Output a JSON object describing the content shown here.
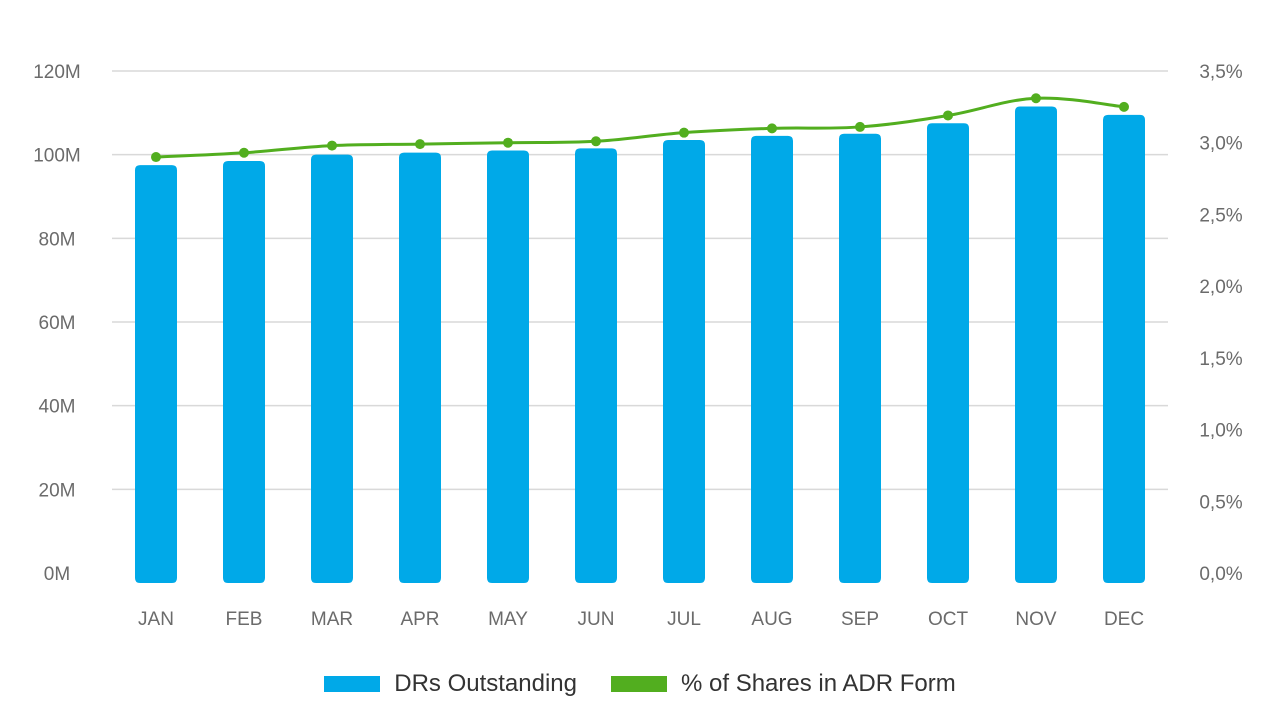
{
  "chart_data": {
    "type": "bar",
    "categories": [
      "JAN",
      "FEB",
      "MAR",
      "APR",
      "MAY",
      "JUN",
      "JUL",
      "AUG",
      "SEP",
      "OCT",
      "NOV",
      "DEC"
    ],
    "series": [
      {
        "name": "DRs Outstanding",
        "type": "bar",
        "axis": "left",
        "color": "#00A9E8",
        "values": [
          97.5,
          98.5,
          100.0,
          100.5,
          101.0,
          101.5,
          103.5,
          104.5,
          105.0,
          107.5,
          111.5,
          109.5
        ]
      },
      {
        "name": "% of Shares in ADR Form",
        "type": "line",
        "axis": "right",
        "color": "#52AE1F",
        "values": [
          2.9,
          2.93,
          2.98,
          2.99,
          3.0,
          3.01,
          3.07,
          3.1,
          3.11,
          3.19,
          3.31,
          3.25
        ]
      }
    ],
    "y_left": {
      "ylim": [
        0,
        120
      ],
      "ticks": [
        0,
        20,
        40,
        60,
        80,
        100,
        120
      ],
      "tick_labels": [
        "0M",
        "20M",
        "40M",
        "60M",
        "80M",
        "100M",
        "120M"
      ]
    },
    "y_right": {
      "ylim": [
        0,
        3.5
      ],
      "ticks": [
        0,
        0.5,
        1.0,
        1.5,
        2.0,
        2.5,
        3.0,
        3.5
      ],
      "tick_labels": [
        "0,0%",
        "0,5%",
        "1,0%",
        "1,5%",
        "2,0%",
        "2,5%",
        "3,0%",
        "3,5%"
      ]
    },
    "grid": true,
    "legend_position": "bottom-center",
    "title": "",
    "xlabel": "",
    "ylabel": ""
  }
}
